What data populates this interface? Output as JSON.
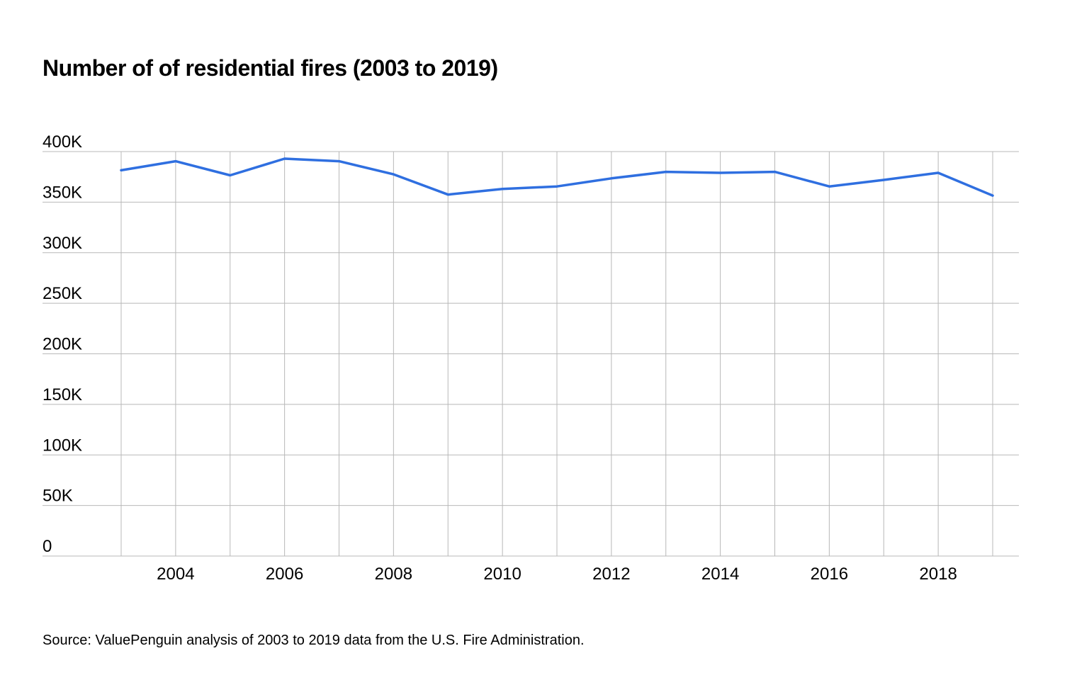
{
  "chart_data": {
    "type": "line",
    "title": "Number of of residential fires (2003 to 2019)",
    "xlabel": "",
    "ylabel": "",
    "x": [
      2003,
      2004,
      2005,
      2006,
      2007,
      2008,
      2009,
      2010,
      2011,
      2012,
      2013,
      2014,
      2015,
      2016,
      2017,
      2018,
      2019
    ],
    "series": [
      {
        "values": [
          381500,
          390500,
          376500,
          393000,
          390500,
          377500,
          357500,
          363000,
          365500,
          373500,
          380000,
          379000,
          380000,
          365500,
          372000,
          379000,
          356500
        ],
        "color": "#2f6fe0"
      }
    ],
    "ylim": [
      0,
      400000
    ],
    "xlim": [
      2003,
      2019
    ],
    "y_ticks": [
      0,
      50000,
      100000,
      150000,
      200000,
      250000,
      300000,
      350000,
      400000
    ],
    "y_tick_labels": [
      "0",
      "50K",
      "100K",
      "150K",
      "200K",
      "250K",
      "300K",
      "350K",
      "400K"
    ],
    "x_ticks": [
      2004,
      2006,
      2008,
      2010,
      2012,
      2014,
      2016,
      2018
    ],
    "x_tick_labels": [
      "2004",
      "2006",
      "2008",
      "2010",
      "2012",
      "2014",
      "2016",
      "2018"
    ],
    "grid": true,
    "legend": "none",
    "source": "Source: ValuePenguin analysis of 2003 to 2019 data from the U.S. Fire Administration."
  },
  "colors": {
    "line": "#2f6fe0",
    "grid": "#b8b8b8",
    "text": "#000000"
  }
}
